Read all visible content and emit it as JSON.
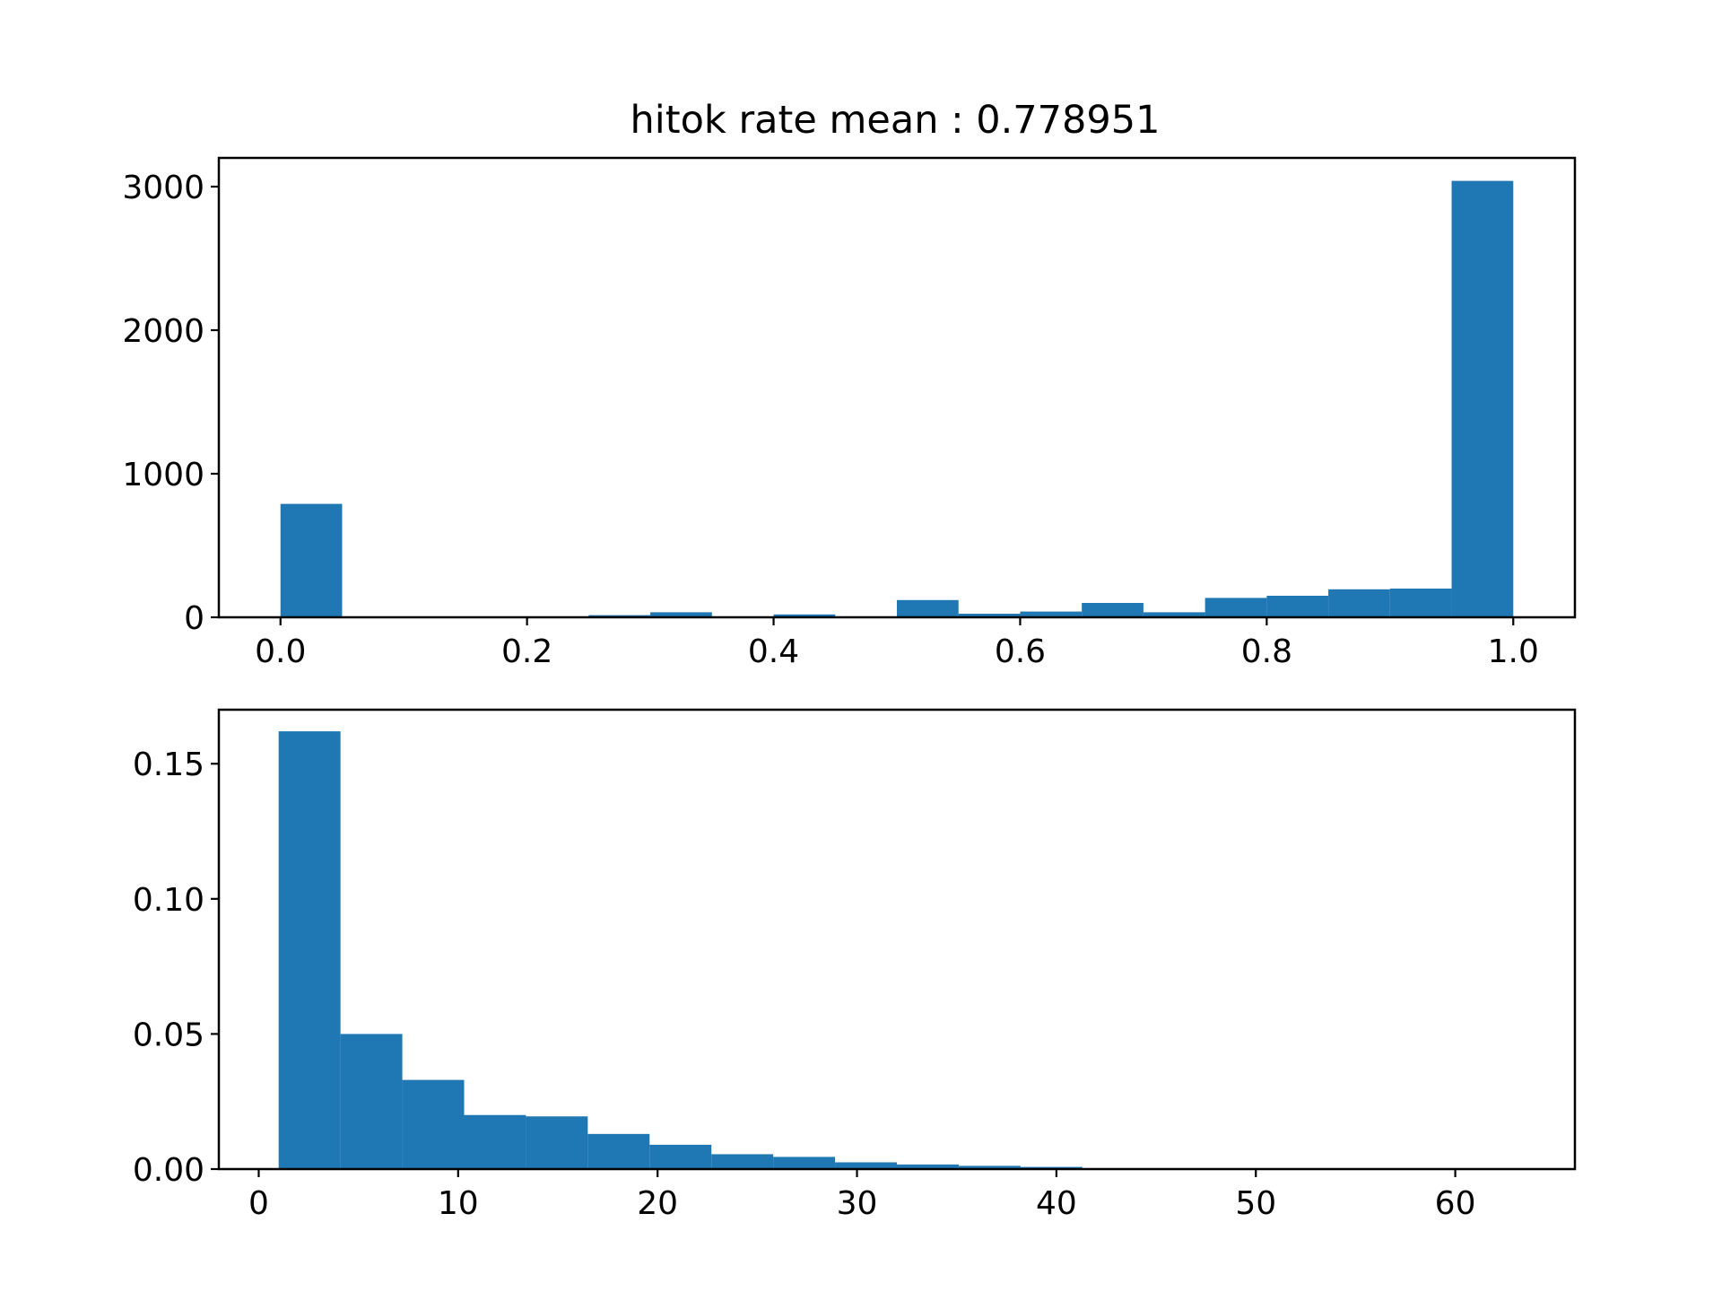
{
  "chart_data": [
    {
      "type": "bar",
      "title": "hitok rate mean : 0.778951",
      "xlabel": "",
      "ylabel": "",
      "color": "#1f77b4",
      "xlim": [
        -0.05,
        1.05
      ],
      "ylim": [
        0,
        3200
      ],
      "xticks": [
        "0.0",
        "0.2",
        "0.4",
        "0.6",
        "0.8",
        "1.0"
      ],
      "yticks": [
        "0",
        "1000",
        "2000",
        "3000"
      ],
      "bin_edges": [
        0.0,
        0.05,
        0.1,
        0.15,
        0.2,
        0.25,
        0.3,
        0.35,
        0.4,
        0.45,
        0.5,
        0.55,
        0.6,
        0.65,
        0.7,
        0.75,
        0.8,
        0.85,
        0.9,
        0.95,
        1.0
      ],
      "values": [
        790,
        0,
        0,
        0,
        0,
        15,
        35,
        0,
        20,
        0,
        120,
        25,
        40,
        100,
        35,
        135,
        150,
        195,
        200,
        3040
      ]
    },
    {
      "type": "bar",
      "title": "",
      "xlabel": "",
      "ylabel": "",
      "color": "#1f77b4",
      "xlim": [
        -2,
        66
      ],
      "ylim": [
        0,
        0.17
      ],
      "xticks": [
        "0",
        "10",
        "20",
        "30",
        "40",
        "50",
        "60"
      ],
      "yticks": [
        "0.00",
        "0.05",
        "0.10",
        "0.15"
      ],
      "bin_edges": [
        1,
        4.1,
        7.2,
        10.3,
        13.4,
        16.5,
        19.6,
        22.7,
        25.8,
        28.9,
        32.0,
        35.1,
        38.2,
        41.3,
        44.4,
        47.5,
        50.6,
        53.7,
        56.8,
        59.9,
        63
      ],
      "values": [
        0.162,
        0.05,
        0.033,
        0.02,
        0.0195,
        0.013,
        0.009,
        0.0055,
        0.0045,
        0.0025,
        0.0017,
        0.0012,
        0.0008,
        0.0002,
        0.0001,
        0.0001,
        0.0001,
        0.0,
        0.0,
        0.0
      ]
    }
  ]
}
